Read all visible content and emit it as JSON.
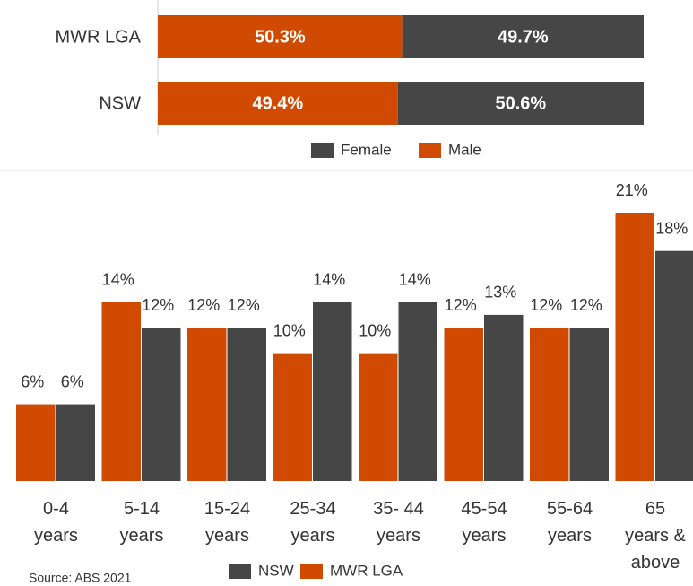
{
  "chart_data": [
    {
      "type": "hbar_stacked",
      "categories": [
        "MWR LGA",
        "NSW"
      ],
      "series": [
        {
          "name": "Male",
          "color": "#d04a02",
          "values": [
            50.3,
            49.4
          ],
          "value_labels": [
            "50.3%",
            "49.4%"
          ]
        },
        {
          "name": "Female",
          "color": "#464646",
          "values": [
            49.7,
            50.6
          ],
          "value_labels": [
            "49.7%",
            "50.6%"
          ]
        }
      ],
      "xlim": [
        0,
        100
      ]
    },
    {
      "type": "grouped_bar",
      "categories": [
        "0-4\nyears",
        "5-14\nyears",
        "15-24\nyears",
        "25-34\nyears",
        "35- 44\nyears",
        "45-54\nyears",
        "55-64\nyears",
        "65\nyears &\nabove"
      ],
      "series": [
        {
          "name": "MWR LGA",
          "color": "#d04a02",
          "values": [
            6,
            14,
            12,
            10,
            10,
            12,
            12,
            21
          ],
          "value_labels": [
            "6%",
            "14%",
            "12%",
            "10%",
            "10%",
            "12%",
            "12%",
            "21%"
          ]
        },
        {
          "name": "NSW",
          "color": "#464646",
          "values": [
            6,
            12,
            12,
            14,
            14,
            13,
            12,
            18
          ],
          "value_labels": [
            "6%",
            "12%",
            "12%",
            "14%",
            "14%",
            "13%",
            "12%",
            "18%"
          ]
        }
      ],
      "ylim": [
        0,
        21
      ],
      "source": "Source: ABS 2021"
    }
  ]
}
